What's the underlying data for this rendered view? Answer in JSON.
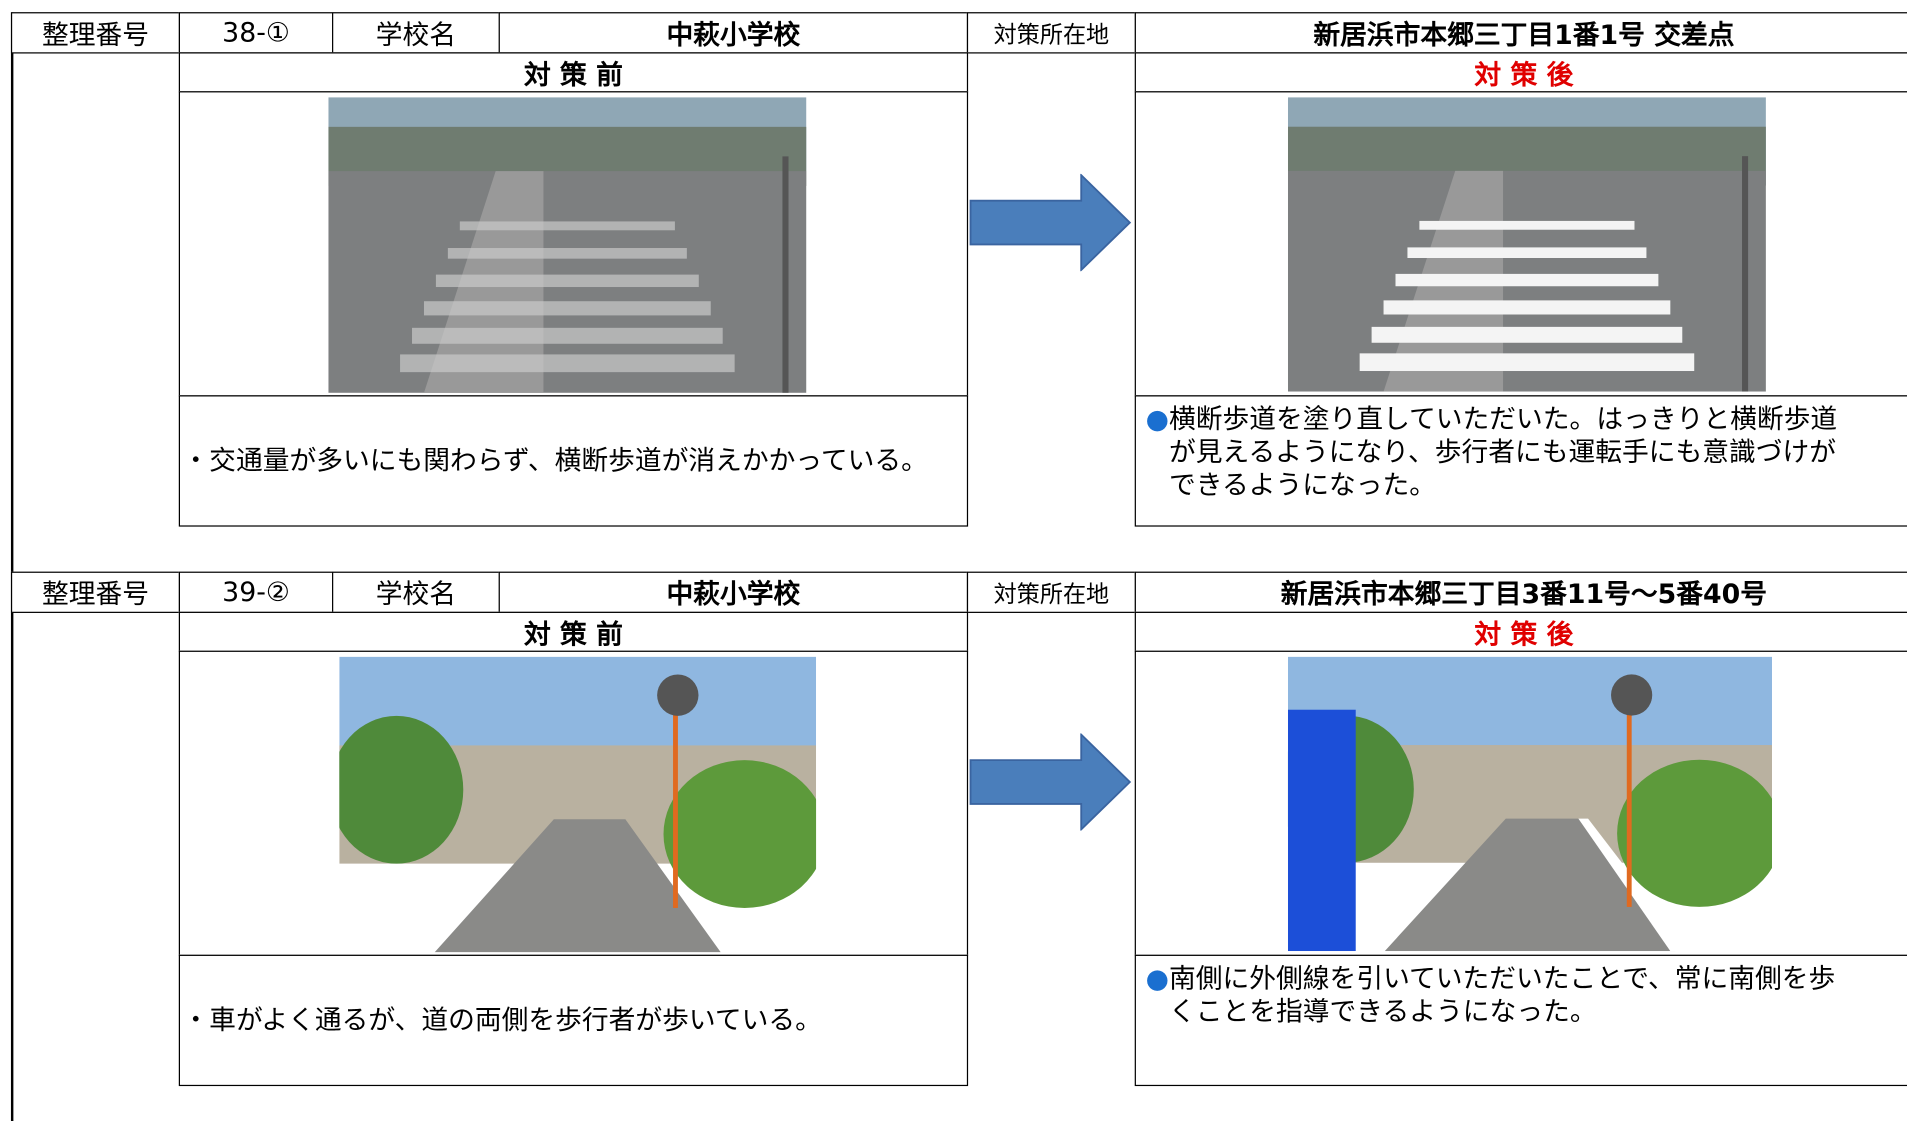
{
  "sections": [
    {
      "header": {
        "number_label": "整理番号",
        "number": "38-①",
        "school_label": "学校名",
        "school": "中萩小学校",
        "location_label": "対策所在地",
        "location": "新居浜市本郷三丁目1番1号 交差点"
      },
      "before": {
        "label": "対 策 前",
        "note": "・交通量が多いにも関わらず、横断歩道が消えかかっている。"
      },
      "after": {
        "label": "対 策 後",
        "bullet": "●",
        "note": "横断歩道を塗り直していただいた。はっきりと横断歩道が見えるようになり、歩行者にも運転手にも意識づけができるようになった。"
      }
    },
    {
      "header": {
        "number_label": "整理番号",
        "number": "39-②",
        "school_label": "学校名",
        "school": "中萩小学校",
        "location_label": "対策所在地",
        "location": "新居浜市本郷三丁目3番11号～5番40号"
      },
      "before": {
        "label": "対 策 前",
        "note": "・車がよく通るが、道の両側を歩行者が歩いている。"
      },
      "after": {
        "label": "対 策 後",
        "bullet": "●",
        "note": "南側に外側線を引いていただいたことで、常に南側を歩くことを指導できるようになった。"
      }
    }
  ]
}
